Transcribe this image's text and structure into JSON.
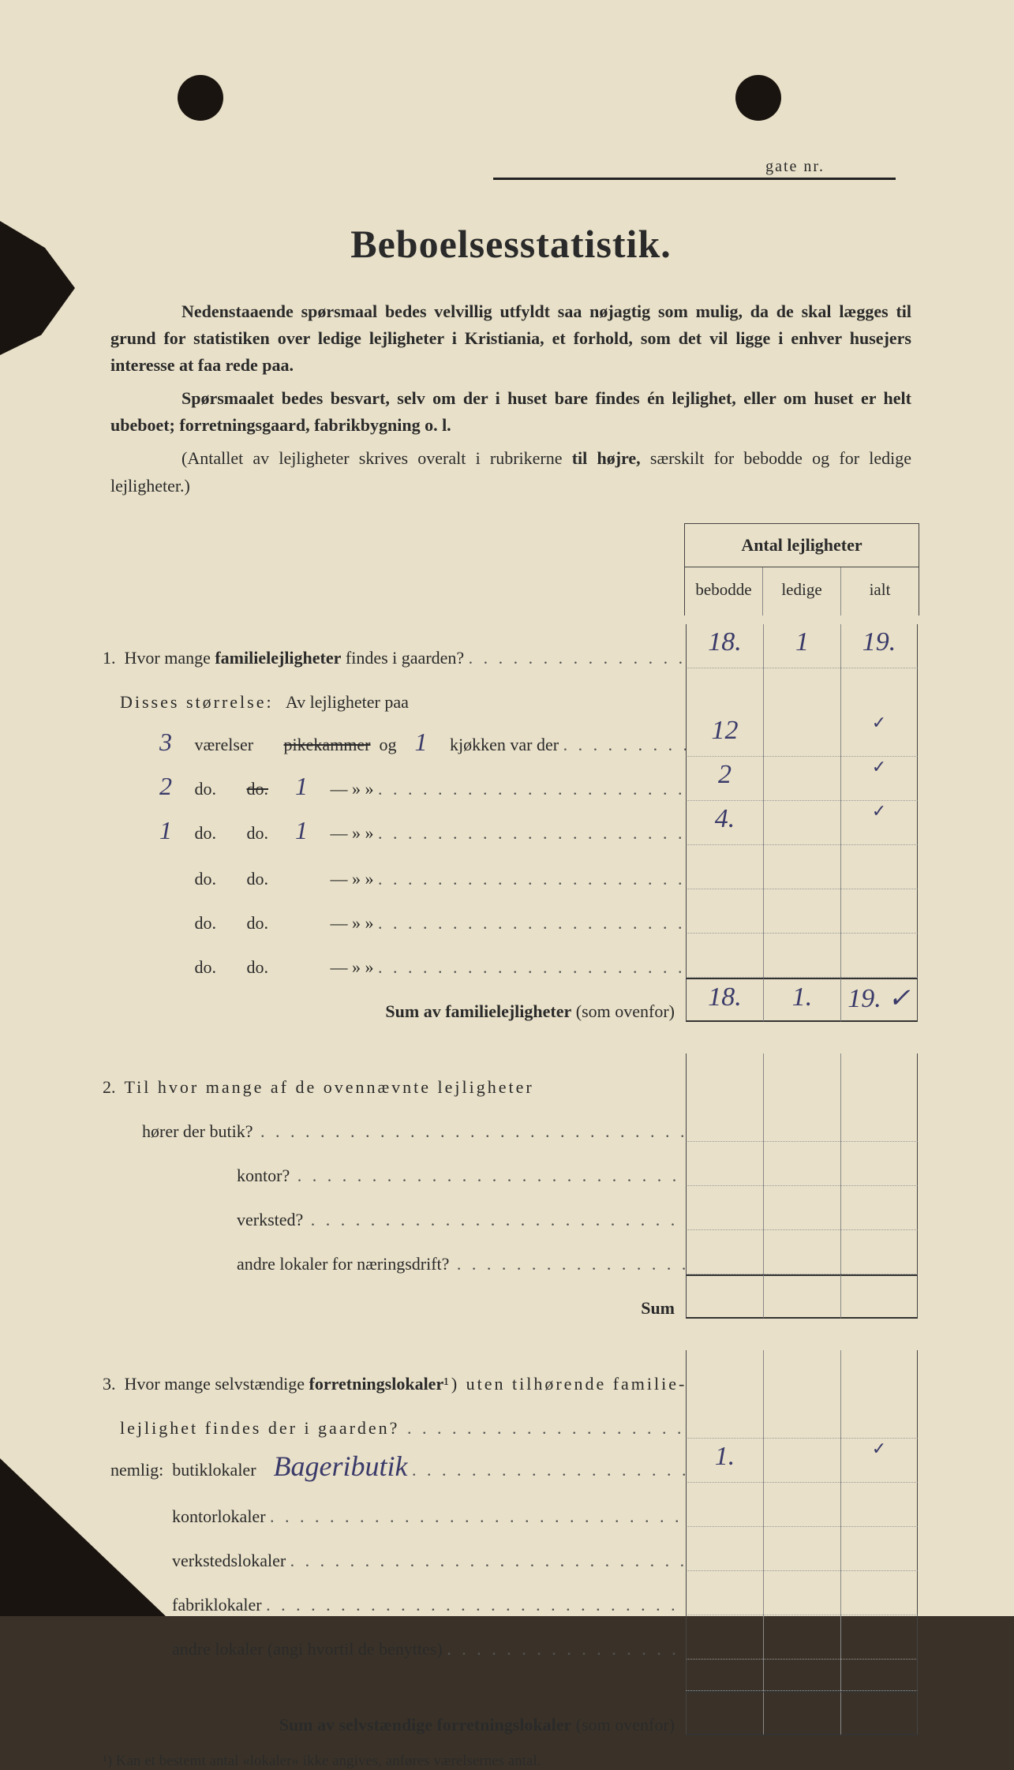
{
  "colors": {
    "paper": "#e8e0c8",
    "ink": "#2a2a2a",
    "handwriting": "#3a3a6a",
    "border": "#444444"
  },
  "header": {
    "gate_label": "gate nr."
  },
  "title": "Beboelsesstatistik.",
  "intro": {
    "p1_a": "Nedenstaaende spørsmaal bedes velvillig utfyldt saa nøjagtig som mulig, da de skal lægges til grund for statistiken over ledige lejligheter i Kristiania, et forhold, som det vil ligge i enhver husejers interesse at faa rede paa.",
    "p2_a": "Spørsmaalet bedes besvart, selv om der i huset bare findes én lejlighet, eller om huset er helt ubeboet; forretningsgaard, fabrikbygning o. l.",
    "p3_a": "(Antallet av lejligheter skrives overalt i rubrikerne ",
    "p3_b": "til højre,",
    "p3_c": " særskilt for bebodde og for ledige lejligheter.)"
  },
  "table_header": {
    "title": "Antal lejligheter",
    "col1": "bebodde",
    "col2": "ledige",
    "col3": "ialt"
  },
  "q1": {
    "num": "1.",
    "text_a": "Hvor mange ",
    "text_b": "familielejligheter",
    "text_c": " findes i gaarden?",
    "sub": "Disses størrelse:",
    "sub2": "Av lejligheter paa",
    "rows": [
      {
        "v": "3",
        "w1": "værelser",
        "pk": "pikekammer",
        "og": "og",
        "k": "1",
        "w2": "kjøkken var der",
        "c1": "12",
        "c2": "",
        "c3": "✓"
      },
      {
        "v": "2",
        "w1": "do.",
        "pk": "do.",
        "og": "",
        "k": "1",
        "w2": "—    »    »",
        "c1": "2",
        "c2": "",
        "c3": "✓"
      },
      {
        "v": "1",
        "w1": "do.",
        "pk": "do.",
        "og": "",
        "k": "1",
        "w2": "—    »    »",
        "c1": "4.",
        "c2": "",
        "c3": "✓"
      },
      {
        "v": "",
        "w1": "do.",
        "pk": "do.",
        "og": "",
        "k": "",
        "w2": "—    »    »",
        "c1": "",
        "c2": "",
        "c3": ""
      },
      {
        "v": "",
        "w1": "do.",
        "pk": "do.",
        "og": "",
        "k": "",
        "w2": "—    »    »",
        "c1": "",
        "c2": "",
        "c3": ""
      },
      {
        "v": "",
        "w1": "do.",
        "pk": "do.",
        "og": "",
        "k": "",
        "w2": "—    »    »",
        "c1": "",
        "c2": "",
        "c3": ""
      }
    ],
    "top": {
      "c1": "18.",
      "c2": "1",
      "c3": "19."
    },
    "sum_label": "Sum av familielejligheter",
    "sum_paren": "(som ovenfor)",
    "sum": {
      "c1": "18.",
      "c2": "1.",
      "c3": "19. ✓"
    }
  },
  "q2": {
    "num": "2.",
    "text": "Til hvor mange af de ovennævnte lejligheter",
    "lines": [
      "hører der butik?",
      "kontor?",
      "verksted?",
      "andre lokaler for næringsdrift?"
    ],
    "sum": "Sum"
  },
  "q3": {
    "num": "3.",
    "text_a": "Hvor mange selvstændige ",
    "text_b": "forretningslokaler",
    "text_c": "¹) uten tilhørende familie-",
    "text_d": "lejlighet findes der i gaarden?",
    "nemlig": "nemlig:",
    "lines": [
      {
        "label": "butiklokaler",
        "hw": "Bageributik",
        "c1": "1.",
        "c3": "✓"
      },
      {
        "label": "kontorlokaler",
        "hw": "",
        "c1": "",
        "c3": ""
      },
      {
        "label": "verkstedslokaler",
        "hw": "",
        "c1": "",
        "c3": ""
      },
      {
        "label": "fabriklokaler",
        "hw": "",
        "c1": "",
        "c3": ""
      },
      {
        "label": "andre lokaler (angi hvortil de benyttes)",
        "hw": "",
        "c1": "",
        "c3": ""
      }
    ],
    "sum_label": "Sum av selvstændige forretningslokaler",
    "sum_paren": "(som ovenfor)"
  },
  "footnote": "¹) Kan et bestemt antal «lokaler» ikke angives, anføres værelsernes antal."
}
